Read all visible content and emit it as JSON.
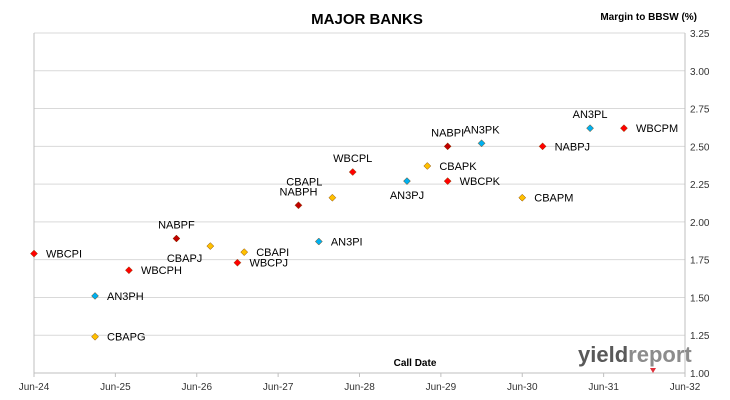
{
  "chart_data": {
    "type": "scatter",
    "title": "MAJOR BANKS",
    "ylabel": "Margin to BBSW (%)",
    "xlabel": "Call Date",
    "x_ticks": [
      "Jun-24",
      "Jun-25",
      "Jun-26",
      "Jun-27",
      "Jun-28",
      "Jun-29",
      "Jun-30",
      "Jun-31",
      "Jun-32"
    ],
    "x_range": [
      "2024-06",
      "2032-06"
    ],
    "ylim": [
      1.0,
      3.25
    ],
    "y_ticks": [
      "1.00",
      "1.25",
      "1.50",
      "1.75",
      "2.00",
      "2.25",
      "2.50",
      "2.75",
      "3.00",
      "3.25"
    ],
    "grid": "horizontal",
    "points": [
      {
        "label": "WBCPI",
        "x": "2024-06",
        "y": 1.79,
        "color": "#ff0000",
        "label_pos": "right"
      },
      {
        "label": "AN3PH",
        "x": "2025-03",
        "y": 1.51,
        "color": "#00b0f0",
        "label_pos": "right"
      },
      {
        "label": "CBAPG",
        "x": "2025-03",
        "y": 1.24,
        "color": "#ffc000",
        "label_pos": "right"
      },
      {
        "label": "WBCPH",
        "x": "2025-08",
        "y": 1.68,
        "color": "#ff0000",
        "label_pos": "right"
      },
      {
        "label": "NABPF",
        "x": "2026-03",
        "y": 1.89,
        "color": "#c00000",
        "label_pos": "above"
      },
      {
        "label": "CBAPJ",
        "x": "2026-08",
        "y": 1.84,
        "color": "#ffc000",
        "label_pos": "below-left"
      },
      {
        "label": "WBCPJ",
        "x": "2026-12",
        "y": 1.73,
        "color": "#ff0000",
        "label_pos": "right"
      },
      {
        "label": "CBAPI",
        "x": "2027-01",
        "y": 1.8,
        "color": "#ffc000",
        "label_pos": "right"
      },
      {
        "label": "NABPH",
        "x": "2027-09",
        "y": 2.11,
        "color": "#c00000",
        "label_pos": "above"
      },
      {
        "label": "AN3PI",
        "x": "2027-12",
        "y": 1.87,
        "color": "#00b0f0",
        "label_pos": "right"
      },
      {
        "label": "CBAPL",
        "x": "2028-02",
        "y": 2.16,
        "color": "#ffc000",
        "label_pos": "above-left"
      },
      {
        "label": "WBCPL",
        "x": "2028-05",
        "y": 2.33,
        "color": "#ff0000",
        "label_pos": "above"
      },
      {
        "label": "AN3PJ",
        "x": "2029-01",
        "y": 2.27,
        "color": "#00b0f0",
        "label_pos": "below"
      },
      {
        "label": "CBAPK",
        "x": "2029-04",
        "y": 2.37,
        "color": "#ffc000",
        "label_pos": "right"
      },
      {
        "label": "NABPI",
        "x": "2029-07",
        "y": 2.5,
        "color": "#c00000",
        "label_pos": "above"
      },
      {
        "label": "WBCPK",
        "x": "2029-07",
        "y": 2.27,
        "color": "#ff0000",
        "label_pos": "right"
      },
      {
        "label": "AN3PK",
        "x": "2029-12",
        "y": 2.52,
        "color": "#00b0f0",
        "label_pos": "above"
      },
      {
        "label": "CBAPM",
        "x": "2030-06",
        "y": 2.16,
        "color": "#ffc000",
        "label_pos": "right"
      },
      {
        "label": "NABPJ",
        "x": "2030-09",
        "y": 2.5,
        "color": "#ff0000",
        "label_pos": "right"
      },
      {
        "label": "AN3PL",
        "x": "2031-04",
        "y": 2.62,
        "color": "#00b0f0",
        "label_pos": "above"
      },
      {
        "label": "WBCPM",
        "x": "2031-09",
        "y": 2.62,
        "color": "#ff0000",
        "label_pos": "right"
      }
    ]
  },
  "watermark": {
    "text": "yieldreport",
    "part1": "yield",
    "part2": "report"
  },
  "colors": {
    "gridline": "#d9d9d9",
    "axis": "#bfbfbf",
    "watermark_dark": "#595959",
    "watermark_light": "#8c8c8c"
  }
}
